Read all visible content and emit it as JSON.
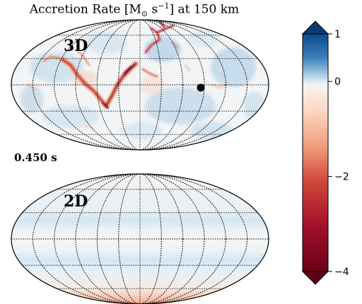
{
  "chart_data": {
    "type": "heatmap",
    "projection": "mollweide",
    "title_prefix": "Accretion Rate [M",
    "title_sub": "⊙",
    "title_mid": " s",
    "title_sup": "−1",
    "title_suffix": "] at 150 km",
    "time_label": "0.450 s",
    "panels": [
      {
        "label": "3D",
        "marker": "black dot"
      },
      {
        "label": "2D"
      }
    ],
    "colorbar": {
      "colormap": "RdBu",
      "range": [
        -4,
        1
      ],
      "extend": "both",
      "ticks": [
        {
          "value": 1,
          "label": "1"
        },
        {
          "value": 0,
          "label": "0"
        },
        {
          "value": -2,
          "label": "−2"
        },
        {
          "value": -4,
          "label": "−4"
        }
      ]
    },
    "colors": {
      "positive": "#0b4c8c",
      "neutral": "#f7f3f1",
      "negative": "#6b0019"
    }
  }
}
